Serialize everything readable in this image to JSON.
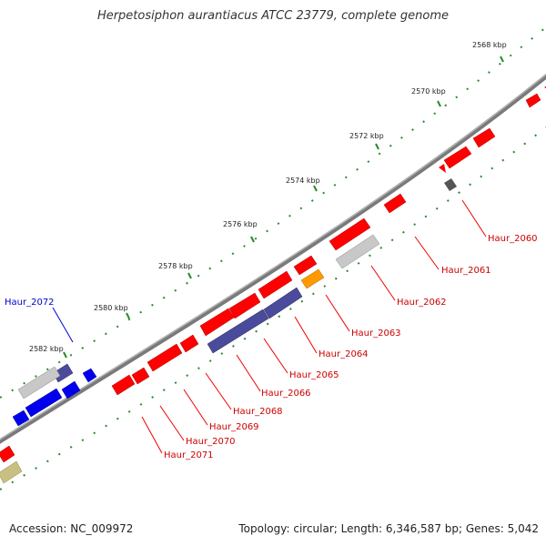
{
  "title": "Herpetosiphon aurantiacus ATCC 23779, complete genome",
  "footer": {
    "accession": "Accession: NC_009972",
    "topology": "Topology: circular; Length: 6,346,587 bp; Genes: 5,042"
  },
  "ticks": [
    "2568 kbp",
    "2570 kbp",
    "2572 kbp",
    "2574 kbp",
    "2576 kbp",
    "2578 kbp",
    "2580 kbp",
    "2582 kbp"
  ],
  "genes": [
    "Haur_2060",
    "Haur_2061",
    "Haur_2062",
    "Haur_2063",
    "Haur_2064",
    "Haur_2065",
    "Haur_2066",
    "Haur_2068",
    "Haur_2069",
    "Haur_2070",
    "Haur_2071",
    "Haur_2072"
  ],
  "colors": {
    "cds_red": "#ff0000",
    "cds_blue": "#0000ee",
    "cds_purple": "#4b4b9b",
    "cds_gray": "#c8c8c8",
    "cds_orange": "#ff9900",
    "cds_olive": "#c8c080",
    "backbone": "#808080",
    "tick_green": "#006600",
    "label_red": "#cc0000",
    "label_blue": "#0000cc"
  }
}
